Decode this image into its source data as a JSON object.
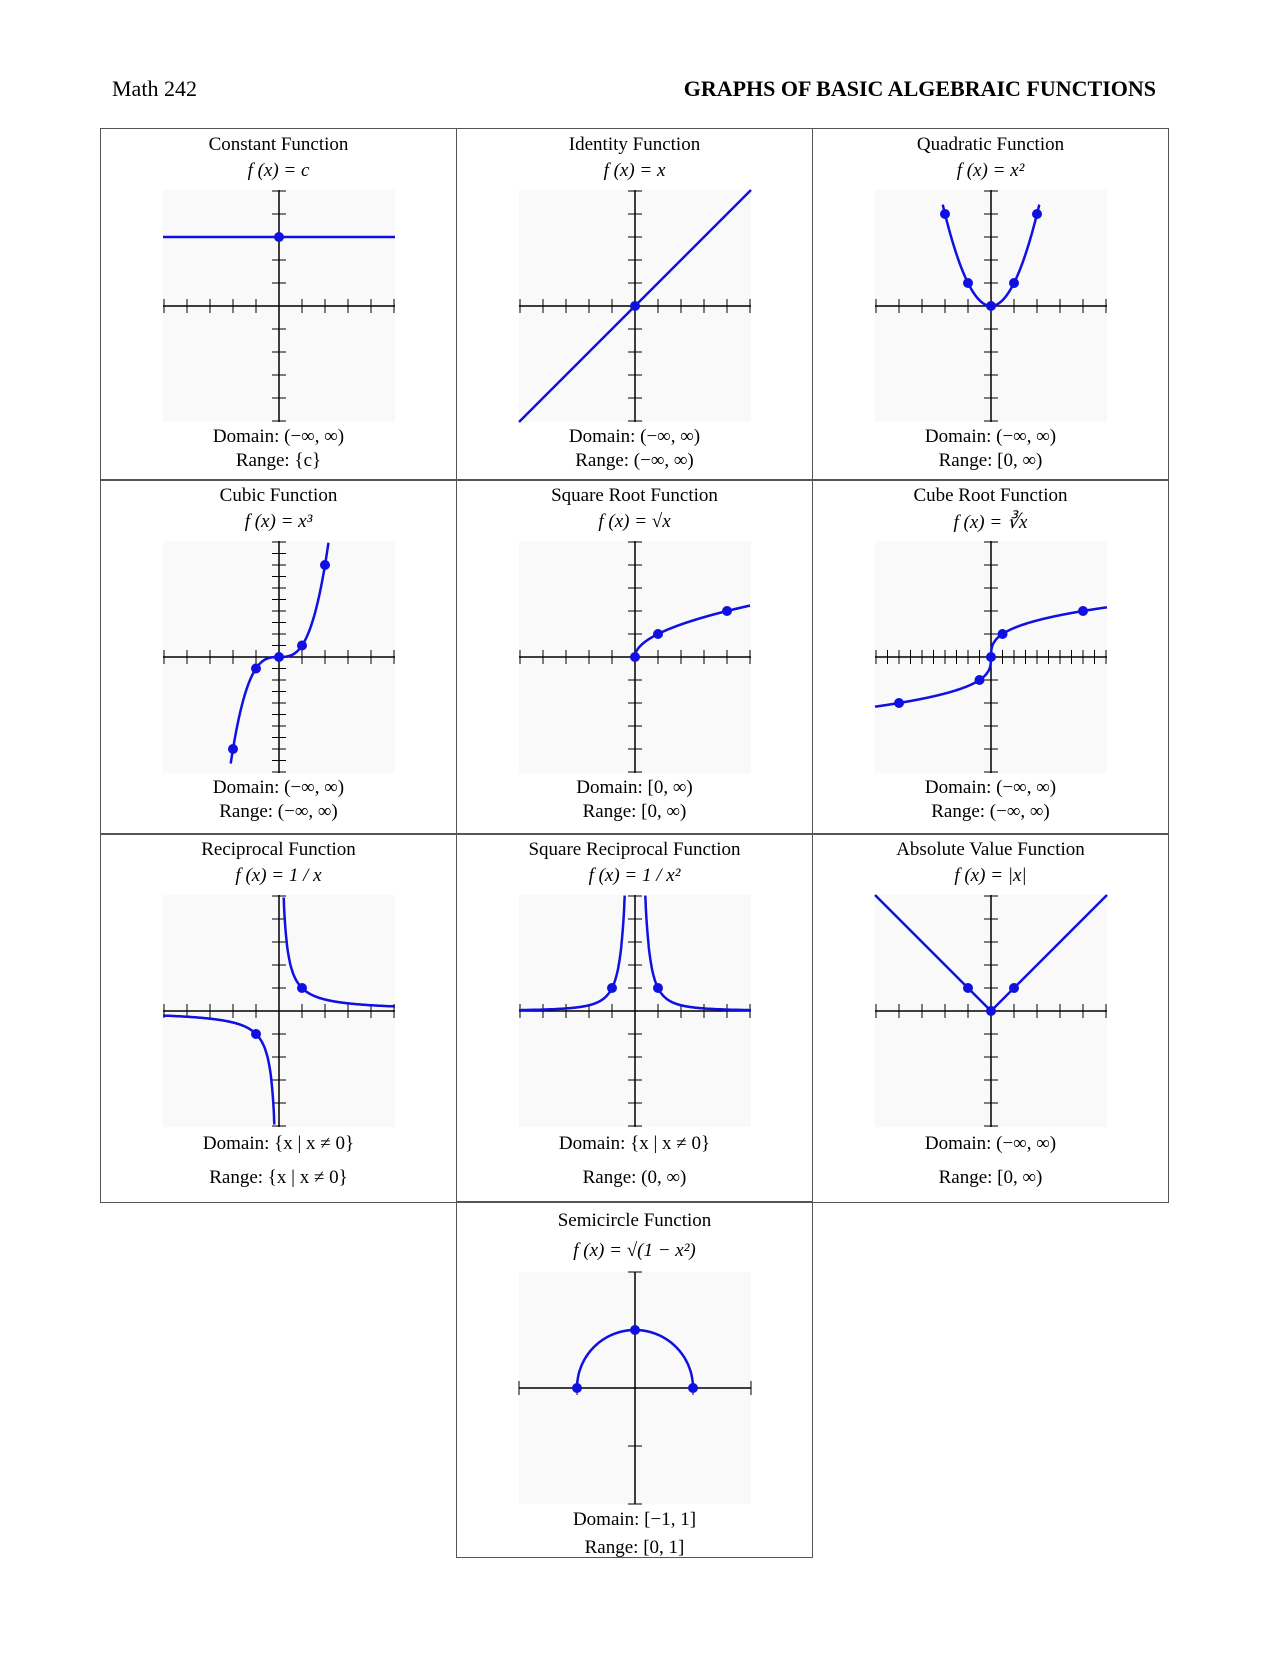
{
  "header": {
    "left": "Math 242",
    "title": "GRAPHS OF BASIC ALGEBRAIC FUNCTIONS"
  },
  "cells": [
    {
      "name": "Constant Function",
      "formula": "f (x) = c",
      "domain": "Domain: (−∞, ∞)",
      "range": "Range: {c}"
    },
    {
      "name": "Identity Function",
      "formula": "f (x) = x",
      "domain": "Domain: (−∞, ∞)",
      "range": "Range: (−∞, ∞)"
    },
    {
      "name": "Quadratic Function",
      "formula": "f (x) = x²",
      "domain": "Domain: (−∞, ∞)",
      "range": "Range: [0, ∞)"
    },
    {
      "name": "Cubic Function",
      "formula": "f (x) = x³",
      "domain": "Domain: (−∞, ∞)",
      "range": "Range: (−∞, ∞)"
    },
    {
      "name": "Square Root Function",
      "formula": "f (x) = √x",
      "domain": "Domain: [0, ∞)",
      "range": "Range: [0, ∞)"
    },
    {
      "name": "Cube Root Function",
      "formula": "f (x) = ∛x",
      "domain": "Domain: (−∞, ∞)",
      "range": "Range: (−∞, ∞)"
    },
    {
      "name": "Reciprocal Function",
      "formula": "f (x) = 1 / x",
      "domain": "Domain: {x | x ≠ 0}",
      "range": "Range: {x | x ≠ 0}"
    },
    {
      "name": "Square Reciprocal Function",
      "formula": "f (x) = 1 / x²",
      "domain": "Domain: {x | x ≠ 0}",
      "range": "Range: (0, ∞)"
    },
    {
      "name": "Absolute Value Function",
      "formula": "f (x) = |x|",
      "domain": "Domain: (−∞, ∞)",
      "range": "Range: [0, ∞)"
    },
    {
      "name": "Semicircle Function",
      "formula": "f (x) = √(1 − x²)",
      "domain": "Domain: [−1, 1]",
      "range": "Range: [0, 1]"
    }
  ]
}
